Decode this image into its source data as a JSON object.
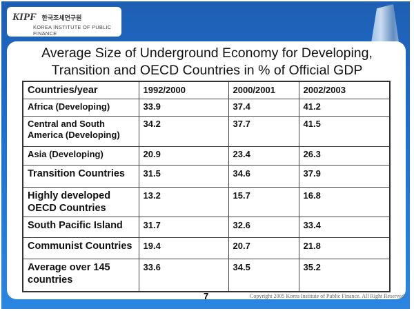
{
  "logo": {
    "mark": "KIPF",
    "korean": "한국조세연구원",
    "english": "KOREA INSTITUTE OF PUBLIC FINANCE"
  },
  "title_line1": "Average Size of Underground Economy for Developing,",
  "title_line2": "Transition and OECD Countries in % of Official GDP",
  "table": {
    "headers": [
      "Countries/year",
      "1992/2000",
      "2000/2001",
      "2002/2003"
    ],
    "rows": [
      [
        "Africa (Developing)",
        "33.9",
        "37.4",
        "41.2"
      ],
      [
        "Central and South America (Developing)",
        "34.2",
        "37.7",
        "41.5"
      ],
      [
        "Asia (Developing)",
        "20.9",
        "23.4",
        "26.3"
      ],
      [
        "Transition Countries",
        "31.5",
        "34.6",
        "37.9"
      ],
      [
        "Highly developed OECD Countries",
        "13.2",
        "15.7",
        "16.8"
      ],
      [
        "South Pacific Island",
        "31.7",
        "32.6",
        "33.4"
      ],
      [
        "Communist Countries",
        "19.4",
        "20.7",
        "21.8"
      ],
      [
        "Average over 145 countries",
        "33.6",
        "34.5",
        "35.2"
      ]
    ]
  },
  "page_number": "7",
  "copyright": "Copyright 2005 Korea Institute of Public Finance. All Right Reserved."
}
